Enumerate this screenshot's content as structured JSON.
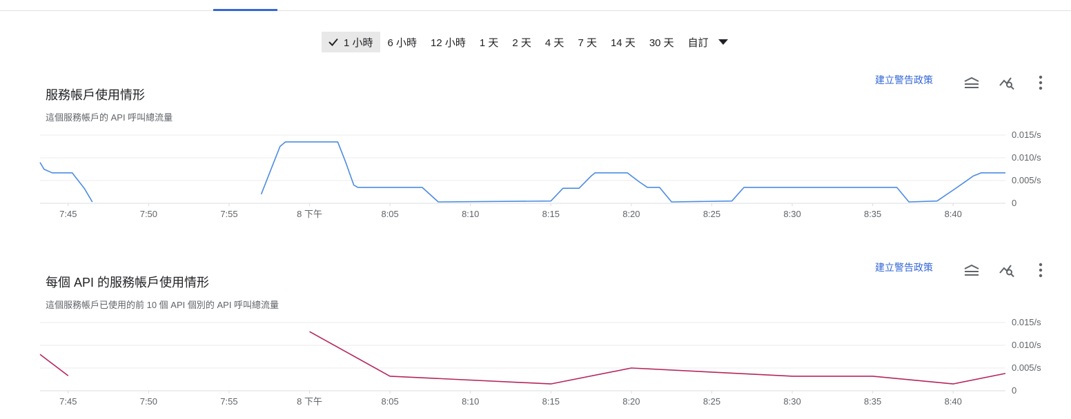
{
  "time_range": {
    "selected_index": 0,
    "options": [
      "1 小時",
      "6 小時",
      "12 小時",
      "1 天",
      "2 天",
      "4 天",
      "7 天",
      "14 天",
      "30 天",
      "自訂"
    ]
  },
  "colors": {
    "accent": "#3367d6",
    "series_blue": "#4a8be0",
    "series_magenta": "#b5235b",
    "grid": "#ebebeb"
  },
  "toolbar": {
    "alert_label": "建立警告政策",
    "icons": [
      "legend-toggle-icon",
      "explore-chart-icon",
      "more-vert-icon"
    ]
  },
  "charts": [
    {
      "title": "服務帳戶使用情形",
      "subtitle": "這個服務帳戶的 API 呼叫總流量"
    },
    {
      "title": "每個 API 的服務帳戶使用情形",
      "subtitle": "這個服務帳戶已使用的前 10 個 API 個別的 API 呼叫總流量"
    }
  ],
  "chart_data": [
    {
      "type": "line",
      "title": "服務帳戶使用情形",
      "subtitle": "這個服務帳戶的 API 呼叫總流量",
      "x_ticks": [
        "7:45",
        "7:50",
        "7:55",
        "8 下午",
        "8:05",
        "8:10",
        "8:15",
        "8:20",
        "8:25",
        "8:30",
        "8:35",
        "8:40"
      ],
      "y_ticks": [
        "0.015/s",
        "0.010/s",
        "0.005/s",
        "0"
      ],
      "xlim": [
        "7:43:15",
        "8:43:15"
      ],
      "ylim": [
        0,
        0.015
      ],
      "grid": true,
      "series": [
        {
          "segments": [
            [
              [
                "7:43:15",
                0.009
              ],
              [
                "7:43:30",
                0.0075
              ],
              [
                "7:44:00",
                0.0067
              ],
              [
                "7:44:30",
                0.0067
              ],
              [
                "7:45:15",
                0.0067
              ],
              [
                "7:46:00",
                0.0033
              ],
              [
                "7:46:30",
                0.0003
              ]
            ],
            [
              [
                "7:57:00",
                0.002
              ],
              [
                "7:57:40",
                0.008
              ],
              [
                "7:58:10",
                0.0125
              ],
              [
                "7:58:30",
                0.0135
              ],
              [
                "8:01:30",
                0.0135
              ],
              [
                "8:01:45",
                0.0135
              ],
              [
                "8:02:15",
                0.009
              ],
              [
                "8:02:45",
                0.004
              ],
              [
                "8:03:00",
                0.0035
              ],
              [
                "8:04:00",
                0.0035
              ],
              [
                "8:07:00",
                0.0035
              ],
              [
                "8:08:00",
                0.0003
              ],
              [
                "8:15:00",
                0.0005
              ],
              [
                "8:15:45",
                0.0033
              ],
              [
                "8:16:45",
                0.0033
              ],
              [
                "8:17:30",
                0.006
              ],
              [
                "8:17:45",
                0.0067
              ],
              [
                "8:19:45",
                0.0067
              ],
              [
                "8:20:30",
                0.0047
              ],
              [
                "8:21:00",
                0.0035
              ],
              [
                "8:21:45",
                0.0035
              ],
              [
                "8:22:30",
                0.0003
              ],
              [
                "8:26:15",
                0.0005
              ],
              [
                "8:27:00",
                0.0035
              ],
              [
                "8:36:30",
                0.0035
              ],
              [
                "8:37:15",
                0.0003
              ],
              [
                "8:39:00",
                0.0005
              ],
              [
                "8:40:15",
                0.0035
              ],
              [
                "8:41:15",
                0.006
              ],
              [
                "8:41:45",
                0.0067
              ],
              [
                "8:43:15",
                0.0067
              ]
            ]
          ]
        }
      ]
    },
    {
      "type": "line",
      "title": "每個 API 的服務帳戶使用情形",
      "subtitle": "這個服務帳戶已使用的前 10 個 API 個別的 API 呼叫總流量",
      "x_ticks": [
        "7:45",
        "7:50",
        "7:55",
        "8 下午",
        "8:05",
        "8:10",
        "8:15",
        "8:20",
        "8:25",
        "8:30",
        "8:35",
        "8:40"
      ],
      "y_ticks": [
        "0.015/s",
        "0.010/s",
        "0.005/s",
        "0"
      ],
      "xlim": [
        "7:43:15",
        "8:43:15"
      ],
      "ylim": [
        0,
        0.015
      ],
      "grid": true,
      "series": [
        {
          "segments": [
            [
              [
                "7:43:15",
                0.008
              ],
              [
                "7:45:00",
                0.0033
              ]
            ],
            [
              [
                "8:00:00",
                0.013
              ],
              [
                "8:05:00",
                0.0032
              ],
              [
                "8:15:00",
                0.0015
              ],
              [
                "8:20:00",
                0.005
              ],
              [
                "8:30:00",
                0.0032
              ],
              [
                "8:35:00",
                0.0032
              ],
              [
                "8:40:00",
                0.0015
              ],
              [
                "8:43:15",
                0.0038
              ]
            ]
          ]
        }
      ]
    }
  ]
}
